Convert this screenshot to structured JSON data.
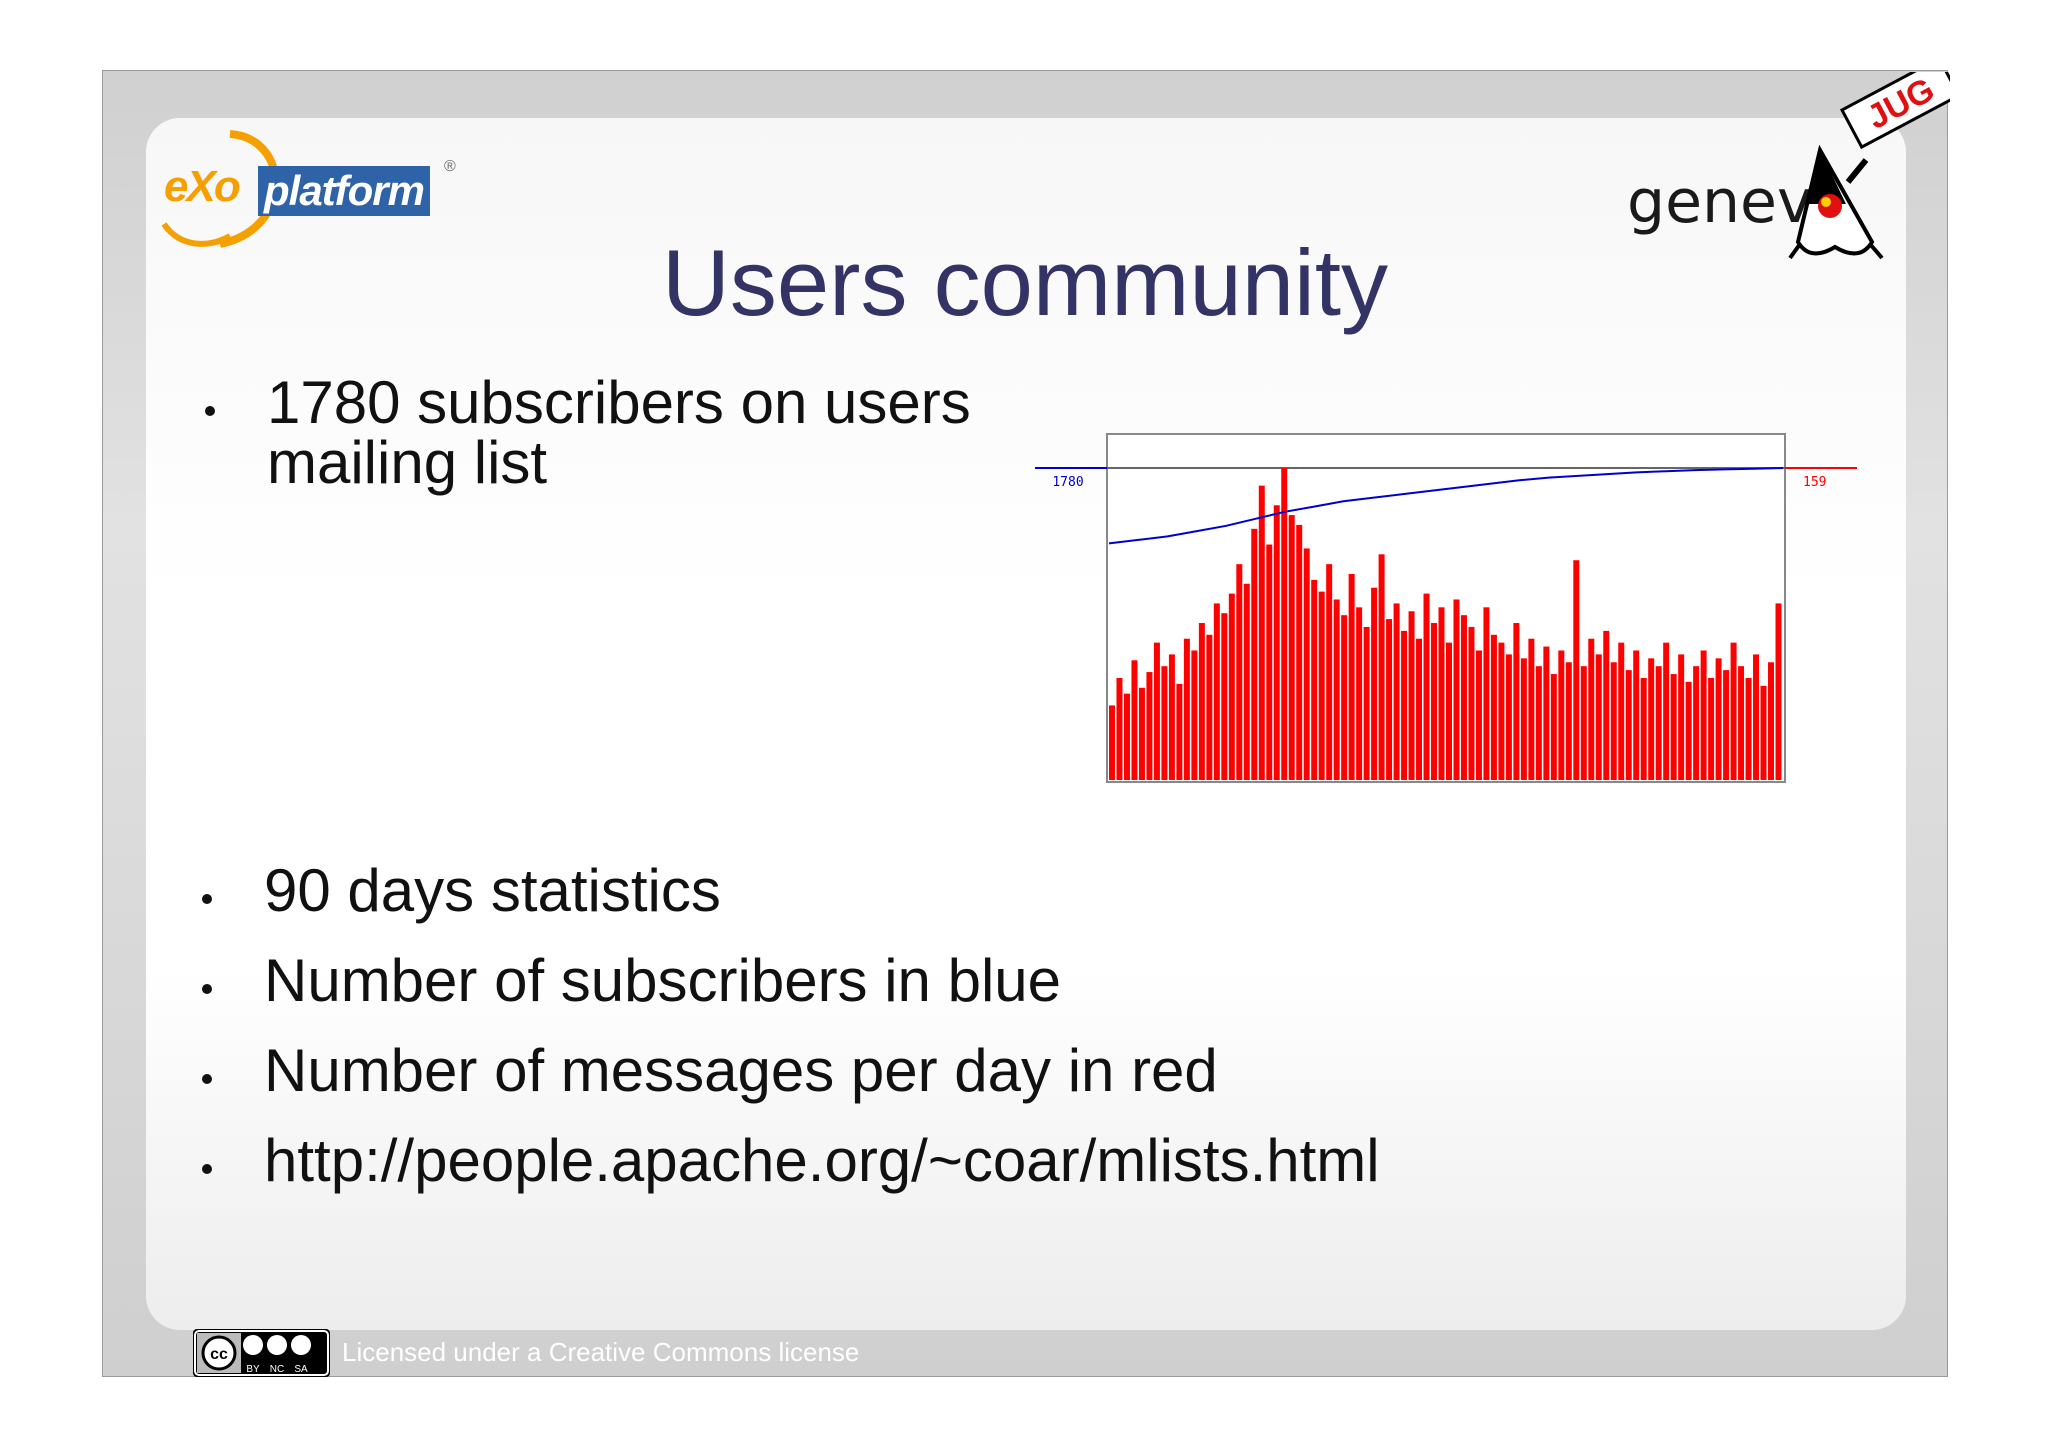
{
  "slide": {
    "title": "Users community",
    "bullets": [
      "1780 subscribers on users mailing list",
      "90 days statistics",
      "Number of subscribers in blue",
      "Number of messages per day in red",
      "http://people.apache.org/~coar/mlists.html"
    ],
    "bullet_first_lines": [
      "1780 subscribers on users",
      "mailing list"
    ]
  },
  "logos": {
    "left": {
      "icon": "exo-platform-logo",
      "text_exo": "eXo",
      "text_platform": "platform",
      "reg": "®"
    },
    "right": {
      "icon": "geneva-jug-duke-logo",
      "text_genev": "genev",
      "text_jug": "JUG"
    }
  },
  "footer": {
    "cc_icon": "creative-commons-by-nc-sa-icon",
    "cc_labels": [
      "BY",
      "NC",
      "SA"
    ],
    "text": "Licensed under a Creative Commons license"
  },
  "colors": {
    "title": "#333366",
    "subscribers_line": "#0000cc",
    "messages_bars": "#ff0000"
  },
  "chart_data": {
    "type": "bar",
    "title": "",
    "xlabel": "",
    "ylabel": "",
    "left_axis_label": "1780",
    "right_axis_label": "159",
    "series": [
      {
        "name": "Number of subscribers",
        "color": "#0000cc",
        "type": "line",
        "axis": "left",
        "values": [
          1350,
          1370,
          1390,
          1420,
          1450,
          1490,
          1530,
          1560,
          1590,
          1610,
          1630,
          1650,
          1670,
          1690,
          1710,
          1725,
          1735,
          1745,
          1755,
          1762,
          1768,
          1772,
          1776,
          1780
        ]
      },
      {
        "name": "Number of messages per day",
        "color": "#ff0000",
        "type": "bar",
        "axis": "right",
        "values": [
          38,
          52,
          44,
          61,
          47,
          55,
          70,
          58,
          64,
          49,
          72,
          66,
          80,
          74,
          90,
          85,
          95,
          110,
          100,
          128,
          150,
          120,
          140,
          159,
          135,
          130,
          118,
          102,
          96,
          110,
          92,
          84,
          105,
          88,
          78,
          98,
          115,
          82,
          90,
          76,
          86,
          72,
          95,
          80,
          88,
          70,
          92,
          84,
          78,
          66,
          88,
          74,
          70,
          64,
          80,
          62,
          72,
          58,
          68,
          54,
          66,
          60,
          112,
          58,
          72,
          64,
          76,
          60,
          70,
          56,
          66,
          52,
          62,
          58,
          70,
          54,
          64,
          50,
          58,
          66,
          52,
          62,
          56,
          70,
          58,
          52,
          64,
          48,
          60,
          90
        ]
      }
    ]
  }
}
